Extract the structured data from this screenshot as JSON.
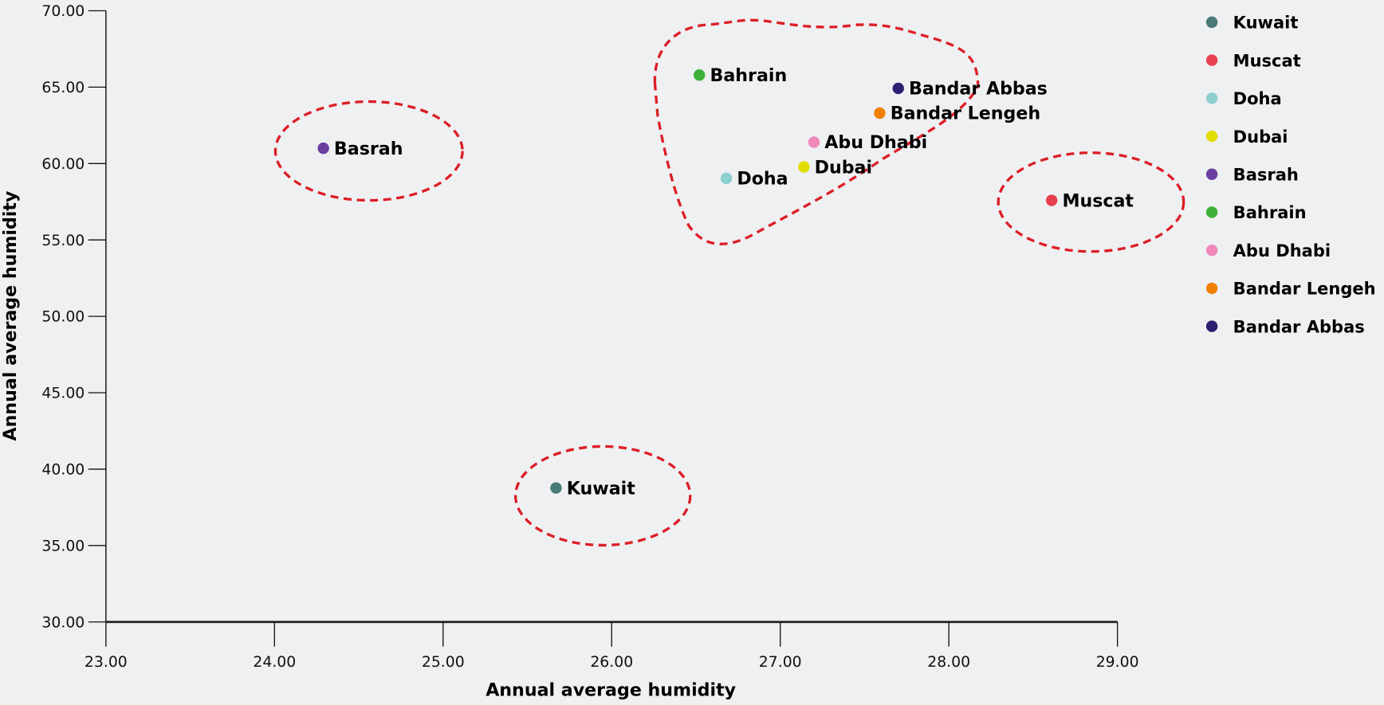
{
  "chart_data": {
    "type": "scatter",
    "title": "",
    "xlabel": "Annual average humidity",
    "ylabel": "Annual average humidity",
    "xlim": [
      23,
      29
    ],
    "ylim": [
      30,
      70
    ],
    "x_ticks": [
      "23.00",
      "24.00",
      "25.00",
      "26.00",
      "27.00",
      "28.00",
      "29.00"
    ],
    "y_ticks": [
      "30.00",
      "35.00",
      "40.00",
      "45.00",
      "50.00",
      "55.00",
      "60.00",
      "65.00",
      "70.00"
    ],
    "grid": false,
    "legend_position": "top-right",
    "series": [
      {
        "name": "Kuwait",
        "x": 25.67,
        "y": 38.77,
        "color": "#4a7a78"
      },
      {
        "name": "Muscat",
        "x": 28.61,
        "y": 57.59,
        "color": "#e8404f"
      },
      {
        "name": "Doha",
        "x": 26.68,
        "y": 59.03,
        "color": "#8ccfcf"
      },
      {
        "name": "Dubai",
        "x": 27.14,
        "y": 59.78,
        "color": "#e0dc00"
      },
      {
        "name": "Basrah",
        "x": 24.29,
        "y": 61.0,
        "color": "#6a3fa0"
      },
      {
        "name": "Bahrain",
        "x": 26.52,
        "y": 65.79,
        "color": "#3db03a"
      },
      {
        "name": "Abu Dhabi",
        "x": 27.2,
        "y": 61.4,
        "color": "#ee88bb"
      },
      {
        "name": "Bandar Lengeh",
        "x": 27.59,
        "y": 63.3,
        "color": "#f08000"
      },
      {
        "name": "Bandar Abbas",
        "x": 27.7,
        "y": 64.92,
        "color": "#2a1f70"
      }
    ],
    "annotations": "red dashed outlines around Basrah, Kuwait, Muscat and the cluster Bahrain/Doha/Dubai/Abu Dhabi/Bandar Lengeh/Bandar Abbas"
  }
}
